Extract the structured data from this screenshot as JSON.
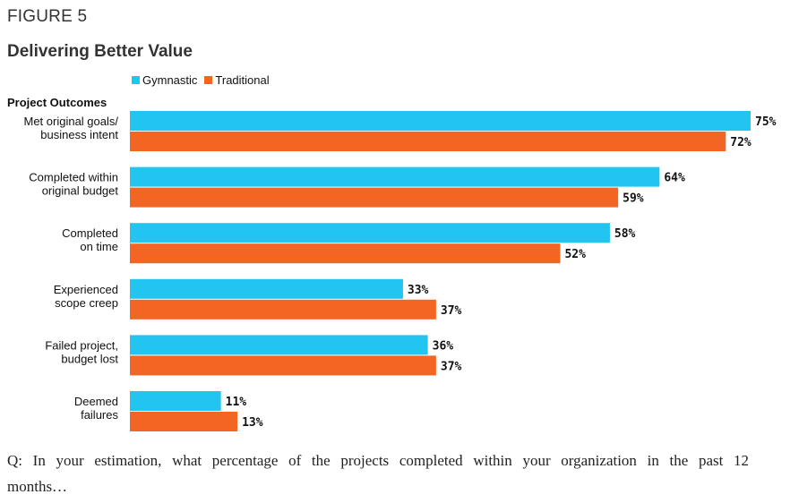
{
  "figure_label": "FIGURE 5",
  "title": "Delivering Better Value",
  "section_label": "Project Outcomes",
  "question": "Q: In your estimation, what percentage of the projects completed within your organization in the past 12 months…",
  "chart_data": {
    "type": "bar",
    "orientation": "horizontal",
    "categories": [
      [
        "Met original goals/",
        "business intent"
      ],
      [
        "Completed within",
        "original budget"
      ],
      [
        "Completed",
        "on time"
      ],
      [
        "Experienced",
        "scope creep"
      ],
      [
        "Failed project,",
        "budget lost"
      ],
      [
        "Deemed",
        "failures"
      ]
    ],
    "series": [
      {
        "name": "Gymnastic",
        "color": "#22C4F0",
        "values": [
          75,
          64,
          58,
          33,
          36,
          11
        ]
      },
      {
        "name": "Traditional",
        "color": "#F26522",
        "values": [
          72,
          59,
          52,
          37,
          37,
          13
        ]
      }
    ],
    "value_suffix": "%",
    "xlim": [
      0,
      75
    ],
    "grid": false,
    "legend_position": "top-left"
  }
}
